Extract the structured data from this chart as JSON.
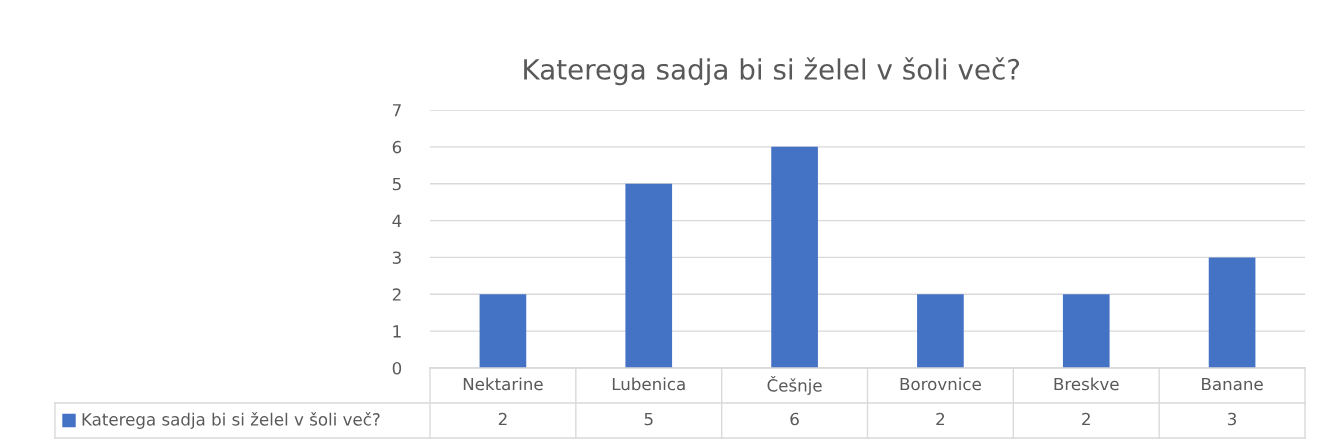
{
  "chart_data": {
    "type": "bar",
    "title": "Katerega sadja bi si želel v šoli več?",
    "categories": [
      "Nektarine",
      "Lubenica",
      "Češnje",
      "Borovnice",
      "Breskve",
      "Banane"
    ],
    "series": [
      {
        "name": "Katerega sadja bi si želel v šoli več?",
        "color": "#4472c4",
        "values": [
          2,
          5,
          6,
          2,
          2,
          3
        ]
      }
    ],
    "ylim": [
      0,
      7
    ],
    "yticks": [
      0,
      1,
      2,
      3,
      4,
      5,
      6,
      7
    ],
    "grid": "y",
    "data_labels": true,
    "legend": "bottom left"
  }
}
